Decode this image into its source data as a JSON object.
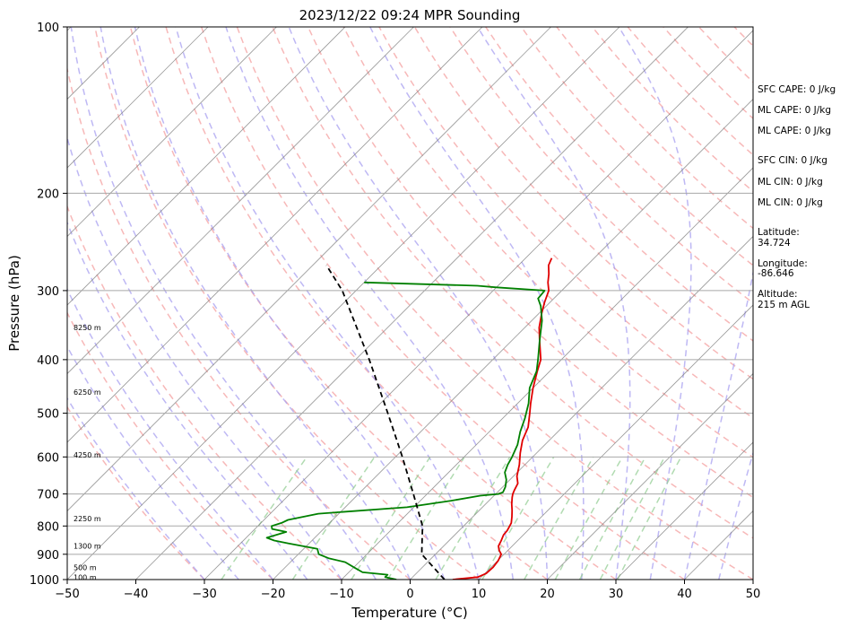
{
  "chart_data": {
    "type": "line",
    "title": "2023/12/22 09:24 MPR Sounding",
    "xlabel": "Temperature (°C)",
    "ylabel": "Pressure (hPa)",
    "xlim": [
      -50,
      50
    ],
    "ylim": [
      1000,
      100
    ],
    "y_scale": "log",
    "grid": true,
    "xticks": [
      -50,
      -40,
      -30,
      -20,
      -10,
      0,
      10,
      20,
      30,
      40,
      50
    ],
    "yticks": [
      100,
      200,
      300,
      400,
      500,
      600,
      700,
      800,
      900,
      1000
    ],
    "series": [
      {
        "color": "#e00000",
        "points": [
          [
            1000,
            6.2
          ],
          [
            990,
            9.5
          ],
          [
            975,
            10.2
          ],
          [
            950,
            10.3
          ],
          [
            925,
            10.1
          ],
          [
            900,
            9.6
          ],
          [
            885,
            8.7
          ],
          [
            870,
            8.0
          ],
          [
            850,
            7.6
          ],
          [
            830,
            7.1
          ],
          [
            815,
            7.0
          ],
          [
            800,
            6.7
          ],
          [
            790,
            6.5
          ],
          [
            770,
            5.7
          ],
          [
            750,
            4.8
          ],
          [
            730,
            3.8
          ],
          [
            710,
            2.9
          ],
          [
            700,
            2.5
          ],
          [
            690,
            2.2
          ],
          [
            670,
            1.7
          ],
          [
            650,
            0.5
          ],
          [
            620,
            -0.8
          ],
          [
            590,
            -2.4
          ],
          [
            560,
            -3.9
          ],
          [
            530,
            -5.0
          ],
          [
            500,
            -6.8
          ],
          [
            480,
            -8.1
          ],
          [
            450,
            -10.0
          ],
          [
            420,
            -11.8
          ],
          [
            400,
            -13.0
          ],
          [
            370,
            -15.9
          ],
          [
            350,
            -17.9
          ],
          [
            330,
            -19.6
          ],
          [
            315,
            -20.8
          ],
          [
            300,
            -21.9
          ],
          [
            290,
            -23.2
          ],
          [
            280,
            -24.3
          ],
          [
            270,
            -25.6
          ],
          [
            262,
            -26.2
          ]
        ]
      },
      {
        "color": "#008000",
        "points": [
          [
            1000,
            -2.0
          ],
          [
            990,
            -4.0
          ],
          [
            980,
            -4.0
          ],
          [
            970,
            -8.0
          ],
          [
            950,
            -10.0
          ],
          [
            930,
            -12.0
          ],
          [
            915,
            -15.0
          ],
          [
            900,
            -17.0
          ],
          [
            880,
            -18.0
          ],
          [
            860,
            -23.0
          ],
          [
            850,
            -25.5
          ],
          [
            840,
            -27.0
          ],
          [
            820,
            -25.0
          ],
          [
            810,
            -27.5
          ],
          [
            800,
            -28.0
          ],
          [
            790,
            -27.0
          ],
          [
            780,
            -26.5
          ],
          [
            760,
            -23.0
          ],
          [
            740,
            -11.0
          ],
          [
            720,
            -5.5
          ],
          [
            705,
            -2.0
          ],
          [
            700,
            0.4
          ],
          [
            695,
            0.8
          ],
          [
            680,
            0.4
          ],
          [
            660,
            -0.5
          ],
          [
            640,
            -1.8
          ],
          [
            620,
            -2.5
          ],
          [
            600,
            -3.0
          ],
          [
            570,
            -4.0
          ],
          [
            540,
            -5.5
          ],
          [
            510,
            -6.8
          ],
          [
            480,
            -8.4
          ],
          [
            450,
            -10.5
          ],
          [
            420,
            -11.9
          ],
          [
            400,
            -13.4
          ],
          [
            370,
            -15.9
          ],
          [
            340,
            -18.5
          ],
          [
            320,
            -20.8
          ],
          [
            310,
            -22.3
          ],
          [
            300,
            -22.5
          ],
          [
            296,
            -30.0
          ],
          [
            294,
            -33.0
          ],
          [
            290,
            -50.0
          ]
        ]
      },
      {
        "color": "#000000",
        "style": "dashed",
        "points": [
          [
            1000,
            5.0
          ],
          [
            900,
            -2.0
          ],
          [
            800,
            -6.0
          ],
          [
            700,
            -12.0
          ],
          [
            600,
            -19.0
          ],
          [
            500,
            -27.5
          ],
          [
            400,
            -38.0
          ],
          [
            300,
            -52.0
          ],
          [
            270,
            -58.0
          ]
        ]
      }
    ],
    "height_labels": [
      {
        "label": "100 m",
        "p": 990
      },
      {
        "label": "500 m",
        "p": 950
      },
      {
        "label": "1300 m",
        "p": 870
      },
      {
        "label": "2250 m",
        "p": 776
      },
      {
        "label": "4250 m",
        "p": 595
      },
      {
        "label": "6250 m",
        "p": 458
      },
      {
        "label": "8250 m",
        "p": 350
      }
    ],
    "annotations": [
      "SFC CAPE: 0 J/kg",
      "ML CAPE: 0 J/kg",
      "ML CAPE: 0 J/kg",
      "SFC CIN: 0 J/kg",
      "ML CIN: 0 J/kg",
      "ML CIN: 0 J/kg",
      "Latitude:",
      "34.724",
      "Longitude:",
      "-86.646",
      "Altitude:",
      "215 m AGL"
    ],
    "colors": {
      "temperature": "#e00000",
      "dewpoint": "#008000",
      "parcel": "#000000",
      "dry_adiabat": "#f4a0a0",
      "moist_adiabat": "#a8a0f0",
      "mixing_ratio": "#90cc90",
      "isotherm": "#808080"
    }
  }
}
